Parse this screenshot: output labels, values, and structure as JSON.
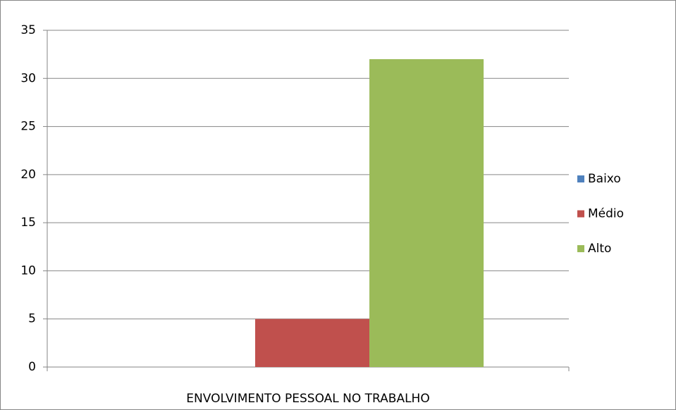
{
  "chart_data": {
    "type": "bar",
    "categories": [
      "ENVOLVIMENTO PESSOAL NO TRABALHO"
    ],
    "series": [
      {
        "name": "Baixo",
        "color": "#4f81bd",
        "values": [
          0
        ]
      },
      {
        "name": "Médio",
        "color": "#c0504d",
        "values": [
          5
        ]
      },
      {
        "name": "Alto",
        "color": "#9bbb59",
        "values": [
          32
        ]
      }
    ],
    "ylim": [
      0,
      35
    ],
    "yticks": [
      0,
      5,
      10,
      15,
      20,
      25,
      30,
      35
    ],
    "grid": true,
    "legend": "right"
  }
}
